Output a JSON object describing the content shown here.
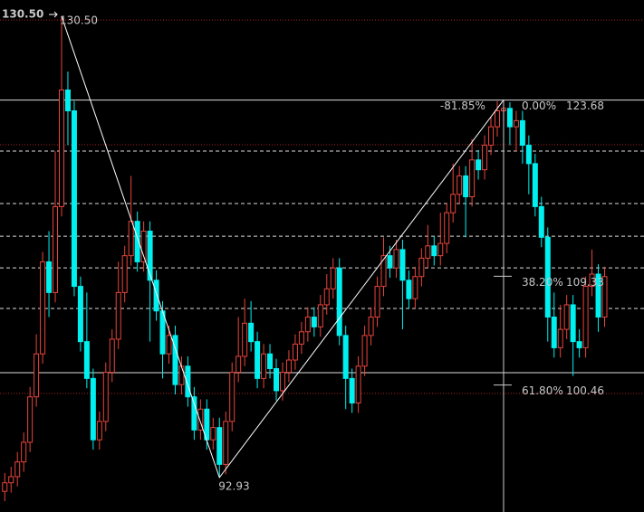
{
  "chart_data": {
    "type": "candlestick",
    "ylim": [
      90.12,
      131.83
    ],
    "up_color": "#e8453c",
    "down_color": "#00f0f0",
    "background": "#000000",
    "open": [
      91.8,
      92.5,
      93.0,
      94.2,
      95.8,
      99.5,
      103.0,
      110.5,
      108.0,
      115.0,
      124.5,
      122.8,
      108.5,
      104.0,
      101.0,
      96.0,
      97.5,
      101.5,
      104.2,
      108.0,
      111.0,
      113.8,
      110.5,
      113.0,
      109.0,
      106.5,
      103.0,
      104.5,
      100.5,
      102.0,
      99.5,
      96.8,
      98.5,
      96.0,
      97.0,
      94.0,
      97.5,
      101.5,
      102.8,
      105.5,
      104.0,
      101.0,
      103.0,
      101.8,
      100.0,
      101.5,
      102.5,
      103.8,
      104.8,
      106.0,
      105.2,
      107.0,
      108.3,
      110.0,
      104.5,
      101.0,
      99.0,
      102.0,
      104.5,
      106.0,
      108.5,
      111.0,
      110.0,
      111.5,
      109.0,
      107.5,
      109.3,
      110.8,
      111.8,
      111.0,
      112.0,
      114.5,
      116.0,
      117.5,
      115.8,
      118.8,
      118.0,
      120.0,
      121.5,
      122.8,
      123.0,
      121.5,
      122.0,
      120.0,
      118.5,
      115.0,
      112.5,
      106.0,
      103.5,
      105.0,
      107.0,
      104.0,
      103.5,
      108.5,
      109.5,
      106.0
    ],
    "high": [
      93.3,
      93.8,
      95.0,
      96.6,
      100.3,
      104.6,
      111.3,
      113.0,
      119.5,
      130.5,
      126.0,
      123.6,
      109.3,
      108.0,
      101.8,
      98.3,
      102.3,
      105.0,
      110.5,
      111.8,
      117.5,
      114.6,
      113.8,
      113.8,
      109.8,
      107.3,
      105.3,
      105.3,
      102.8,
      102.8,
      100.3,
      99.3,
      99.3,
      97.8,
      97.8,
      98.3,
      102.3,
      106.0,
      107.5,
      107.3,
      104.8,
      103.8,
      103.8,
      102.6,
      102.3,
      103.3,
      104.6,
      105.6,
      106.8,
      106.8,
      107.8,
      109.5,
      110.8,
      110.8,
      105.3,
      101.8,
      102.8,
      105.3,
      106.8,
      109.3,
      112.5,
      111.8,
      112.3,
      112.3,
      109.8,
      110.1,
      111.6,
      113.5,
      112.6,
      114.5,
      115.3,
      118.5,
      118.3,
      118.3,
      120.5,
      119.6,
      120.8,
      122.3,
      123.6,
      123.68,
      123.5,
      122.8,
      122.8,
      120.8,
      119.3,
      115.8,
      113.3,
      108.0,
      107.0,
      107.8,
      107.8,
      105.0,
      109.3,
      111.5,
      110.3,
      110.1
    ],
    "low": [
      91.0,
      91.7,
      92.2,
      93.4,
      95.0,
      98.7,
      102.2,
      106.0,
      107.2,
      114.2,
      120.0,
      107.7,
      103.2,
      100.2,
      95.2,
      95.2,
      96.7,
      100.7,
      103.4,
      107.2,
      110.2,
      109.7,
      109.7,
      104.0,
      105.7,
      101.0,
      102.2,
      99.7,
      99.7,
      98.7,
      96.0,
      96.0,
      95.2,
      95.2,
      92.93,
      93.2,
      96.7,
      100.7,
      102.0,
      103.2,
      100.2,
      100.2,
      101.0,
      99.2,
      99.2,
      100.7,
      101.7,
      103.0,
      104.0,
      104.4,
      104.4,
      106.2,
      107.5,
      103.7,
      98.5,
      98.2,
      98.2,
      101.2,
      103.7,
      105.2,
      107.7,
      109.2,
      109.2,
      105.0,
      106.7,
      106.7,
      108.5,
      110.0,
      110.2,
      110.2,
      111.2,
      113.7,
      115.2,
      112.5,
      115.0,
      117.2,
      117.2,
      119.2,
      120.7,
      122.0,
      120.0,
      119.5,
      118.5,
      116.0,
      114.2,
      111.7,
      104.0,
      102.7,
      102.7,
      104.2,
      101.2,
      102.7,
      102.7,
      107.7,
      104.8,
      105.2
    ],
    "close": [
      92.5,
      93.0,
      94.2,
      95.8,
      99.5,
      103.0,
      110.5,
      108.0,
      115.0,
      124.5,
      122.8,
      108.5,
      104.0,
      101.0,
      96.0,
      97.5,
      101.5,
      104.2,
      108.0,
      111.0,
      113.8,
      110.5,
      113.0,
      109.0,
      106.5,
      103.0,
      104.5,
      100.5,
      102.0,
      99.5,
      96.8,
      98.5,
      96.0,
      97.0,
      94.0,
      97.5,
      101.5,
      102.8,
      105.5,
      104.0,
      101.0,
      103.0,
      101.8,
      100.0,
      101.5,
      102.5,
      103.8,
      104.8,
      106.0,
      105.2,
      107.0,
      108.3,
      110.0,
      104.5,
      101.0,
      99.0,
      102.0,
      104.5,
      106.0,
      108.5,
      111.0,
      110.0,
      111.5,
      109.0,
      107.5,
      109.3,
      110.8,
      111.8,
      111.0,
      112.0,
      114.5,
      116.0,
      117.5,
      115.8,
      118.8,
      118.0,
      120.0,
      121.5,
      122.8,
      123.0,
      121.5,
      122.0,
      120.0,
      118.5,
      115.0,
      112.5,
      106.0,
      103.5,
      105.0,
      107.0,
      104.0,
      103.5,
      108.5,
      109.5,
      106.0,
      109.3
    ],
    "levels": [
      {
        "value": 130.2,
        "style": "dotted",
        "color": "#b02020"
      },
      {
        "value": 123.68,
        "style": "solid",
        "color": "#dddddd"
      },
      {
        "value": 120.04,
        "style": "dotted",
        "color": "#b02020"
      },
      {
        "value": 119.52,
        "style": "dashed",
        "color": "#dddddd"
      },
      {
        "value": 115.25,
        "style": "dashed",
        "color": "#dddddd"
      },
      {
        "value": 112.59,
        "style": "dashed",
        "color": "#dddddd"
      },
      {
        "value": 110.01,
        "style": "dashed",
        "color": "#dddddd"
      },
      {
        "value": 106.7,
        "style": "dashed",
        "color": "#dddddd"
      },
      {
        "value": 101.47,
        "style": "solid",
        "color": "#dddddd"
      },
      {
        "value": 99.77,
        "style": "dotted",
        "color": "#b02020"
      }
    ],
    "zigzag": {
      "x": [
        9,
        34,
        79
      ],
      "values": [
        130.5,
        92.93,
        123.68
      ],
      "color": "#ffffff"
    },
    "price_labels": [
      {
        "value": 130.5,
        "label": "130.50"
      },
      {
        "value": 92.93,
        "label": "92.93"
      }
    ],
    "current_label": {
      "value": 130.5,
      "label": "130.50"
    },
    "fib": {
      "extension": {
        "value": -81.85,
        "label": "-81.85%"
      },
      "levels": [
        {
          "ratio": {
            "value": 0,
            "label": "0.00%"
          },
          "price": {
            "value": 123.68,
            "label": "123.68"
          }
        },
        {
          "ratio": {
            "value": 38.2,
            "label": "38.20%"
          },
          "price": {
            "value": 109.33,
            "label": "109.33"
          }
        },
        {
          "ratio": {
            "value": 61.8,
            "label": "61.80%"
          },
          "price": {
            "value": 100.46,
            "label": "100.46"
          }
        }
      ]
    }
  }
}
